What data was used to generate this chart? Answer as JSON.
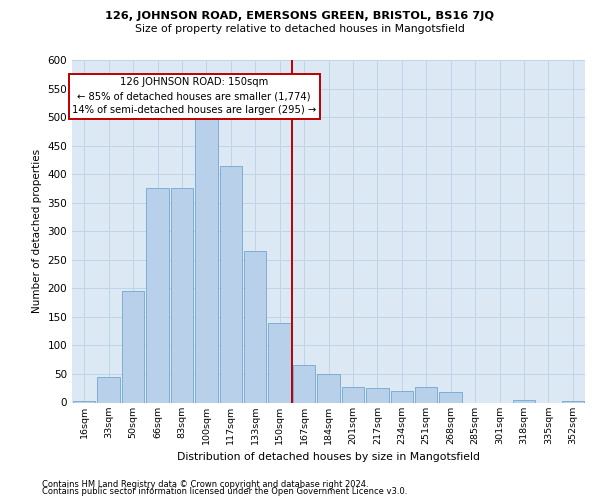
{
  "title_line1": "126, JOHNSON ROAD, EMERSONS GREEN, BRISTOL, BS16 7JQ",
  "title_line2": "Size of property relative to detached houses in Mangotsfield",
  "xlabel": "Distribution of detached houses by size in Mangotsfield",
  "ylabel": "Number of detached properties",
  "footnote1": "Contains HM Land Registry data © Crown copyright and database right 2024.",
  "footnote2": "Contains public sector information licensed under the Open Government Licence v3.0.",
  "bar_labels": [
    "16sqm",
    "33sqm",
    "50sqm",
    "66sqm",
    "83sqm",
    "100sqm",
    "117sqm",
    "133sqm",
    "150sqm",
    "167sqm",
    "184sqm",
    "201sqm",
    "217sqm",
    "234sqm",
    "251sqm",
    "268sqm",
    "285sqm",
    "301sqm",
    "318sqm",
    "335sqm",
    "352sqm"
  ],
  "bar_values": [
    3,
    45,
    195,
    375,
    375,
    510,
    415,
    265,
    140,
    65,
    50,
    28,
    25,
    20,
    28,
    18,
    0,
    0,
    5,
    0,
    3
  ],
  "bar_color": "#b8d0ea",
  "bar_edge_color": "#6fa8d0",
  "grid_color": "#c0d4e8",
  "bg_color": "#dce8f4",
  "vline_color": "#bb0000",
  "annotation_text": "126 JOHNSON ROAD: 150sqm\n← 85% of detached houses are smaller (1,774)\n14% of semi-detached houses are larger (295) →",
  "annotation_box_color": "#bb0000",
  "ylim": [
    0,
    600
  ],
  "yticks": [
    0,
    50,
    100,
    150,
    200,
    250,
    300,
    350,
    400,
    450,
    500,
    550,
    600
  ],
  "vline_idx": 8
}
